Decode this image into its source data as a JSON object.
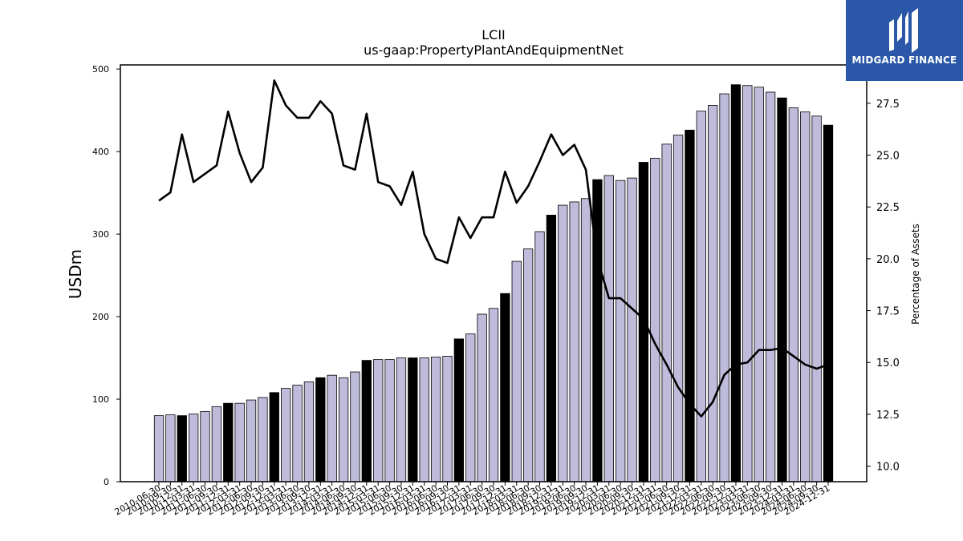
{
  "brand": {
    "name": "MIDGARD FINANCE",
    "accent": "#2a57a8"
  },
  "chart_data": {
    "type": "bar",
    "title": "LCII",
    "subtitle": "us-gaap:PropertyPlantAndEquipmentNet",
    "ylabel": "USDm",
    "y2label": "Percentage of Assets",
    "ylim": [
      0,
      505
    ],
    "y2lim": [
      9.25,
      29.35
    ],
    "yticks": [
      0,
      100,
      200,
      300,
      400,
      500
    ],
    "y2ticks": [
      10.0,
      12.5,
      15.0,
      17.5,
      20.0,
      22.5,
      25.0,
      27.5
    ],
    "bar_color_default": "#bfbbdb",
    "bar_color_highlight": "#000000",
    "line_color": "#000000",
    "categories": [
      "2010-06-30",
      "2010-09-30",
      "2010-12-31",
      "2011-03-31",
      "2011-06-30",
      "2011-09-30",
      "2011-12-31",
      "2012-03-31",
      "2012-06-30",
      "2012-09-30",
      "2012-12-31",
      "2013-03-31",
      "2013-06-30",
      "2013-09-30",
      "2013-12-31",
      "2014-03-31",
      "2014-06-30",
      "2014-09-30",
      "2014-12-31",
      "2015-03-31",
      "2015-06-30",
      "2015-09-30",
      "2015-12-31",
      "2016-03-31",
      "2016-06-30",
      "2016-09-30",
      "2016-12-31",
      "2017-03-31",
      "2017-06-30",
      "2017-09-30",
      "2017-12-31",
      "2018-03-31",
      "2018-06-30",
      "2018-09-30",
      "2018-12-31",
      "2019-03-31",
      "2019-06-30",
      "2019-09-30",
      "2019-12-31",
      "2020-03-31",
      "2020-06-30",
      "2020-09-30",
      "2020-12-31",
      "2021-03-31",
      "2021-06-30",
      "2021-09-30",
      "2021-12-31",
      "2022-03-31",
      "2022-06-30",
      "2022-09-30",
      "2022-12-31",
      "2023-03-31",
      "2023-06-30",
      "2023-09-30",
      "2023-12-31",
      "2024-03-31",
      "2024-06-30",
      "2024-09-30",
      "2024-12-31"
    ],
    "tick_labels": [
      "2010-06-30",
      "2010-09-30",
      "2010-12-31",
      "2011-03-31",
      "2011-06-30",
      "2011-09-30",
      "2011-12-31",
      "2012-03-31",
      "2012-06-30",
      "2012-09-30",
      "2012-12-31",
      "2013-03-31",
      "2013-06-30",
      "2013-09-30",
      "2013-12-31",
      "2014-03-31",
      "2014-06-30",
      "2014-09-30",
      "2014-12-31",
      "2015-03-31",
      "2015-06-30",
      "2015-09-30",
      "2015-12-31",
      "2016-03-31",
      "2016-06-30",
      "2016-09-30",
      "2016-12-31",
      "2017-03-31",
      "2017-06-30",
      "2017-09-30",
      "2017-12-31",
      "2018-03-31",
      "2018-06-30",
      "2018-09-30",
      "2018-12-31",
      "2019-03-31",
      "2019-06-30",
      "2019-09-30",
      "2019-12-31",
      "2020-03-31",
      "2020-06-30",
      "2020-09-30",
      "2020-12-31",
      "2021-03-31",
      "2021-06-30",
      "2021-09-30",
      "2021-12-31",
      "2022-03-31",
      "2022-06-30",
      "2022-09-30",
      "2022-12-31",
      "2023-03-31",
      "2023-06-30",
      "2023-09-30",
      "2023-12-31",
      "2024-03-31",
      "2024-06-30",
      "2024-09-30",
      "2024-12-31"
    ],
    "series": [
      {
        "name": "PropertyPlantAndEquipmentNet",
        "type": "bar",
        "axis": "left",
        "values": [
          80,
          81,
          80,
          82,
          85,
          91,
          95,
          95,
          99,
          102,
          108,
          113,
          117,
          121,
          126,
          129,
          126,
          133,
          147,
          148,
          148,
          150,
          150,
          150,
          151,
          152,
          173,
          179,
          203,
          210,
          228,
          267,
          282,
          303,
          323,
          335,
          339,
          343,
          366,
          371,
          365,
          368,
          387,
          392,
          409,
          420,
          426,
          449,
          456,
          470,
          481,
          480,
          478,
          472,
          465,
          453,
          448,
          443,
          432
        ],
        "highlight": [
          false,
          false,
          true,
          false,
          false,
          false,
          true,
          false,
          false,
          false,
          true,
          false,
          false,
          false,
          true,
          false,
          false,
          false,
          true,
          false,
          false,
          false,
          true,
          false,
          false,
          false,
          true,
          false,
          false,
          false,
          true,
          false,
          false,
          false,
          true,
          false,
          false,
          false,
          true,
          false,
          false,
          false,
          true,
          false,
          false,
          false,
          true,
          false,
          false,
          false,
          true,
          false,
          false,
          false,
          true,
          false,
          false,
          false,
          true
        ]
      },
      {
        "name": "Percentage of Assets",
        "type": "line",
        "axis": "right",
        "values": [
          22.8,
          23.2,
          26.0,
          23.7,
          24.1,
          24.5,
          27.1,
          25.1,
          23.7,
          24.4,
          28.6,
          27.4,
          26.8,
          26.8,
          27.6,
          27.0,
          24.5,
          24.3,
          27.0,
          23.7,
          23.5,
          22.6,
          24.2,
          21.2,
          20.0,
          19.8,
          22.0,
          21.0,
          22.0,
          22.0,
          24.2,
          22.7,
          23.5,
          24.7,
          26.0,
          25.0,
          25.5,
          24.3,
          20.0,
          18.1,
          18.1,
          17.6,
          17.1,
          15.9,
          14.9,
          13.8,
          13.0,
          12.4,
          13.1,
          14.4,
          14.9,
          15.0,
          15.6,
          15.6,
          15.7,
          15.3,
          14.9,
          14.7,
          14.9
        ]
      }
    ],
    "legend": "none",
    "grid": false
  }
}
